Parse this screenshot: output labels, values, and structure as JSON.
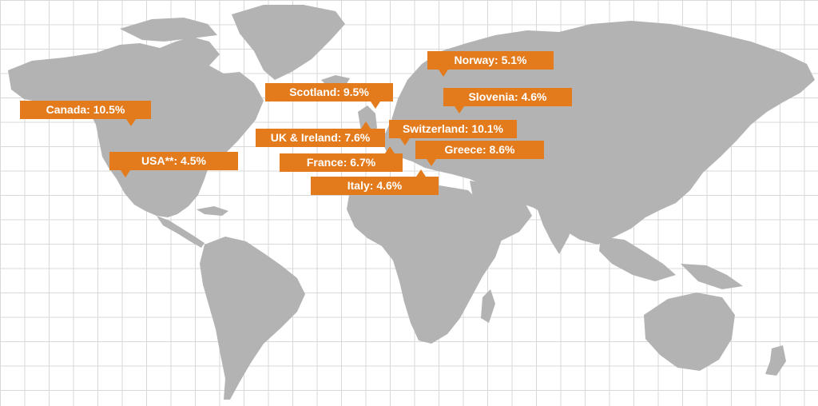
{
  "colors": {
    "accent": "#e37b1d",
    "land": "#b3b3b3",
    "grid": "#d9d9d9",
    "background": "#ffffff",
    "label_text": "#ffffff"
  },
  "callouts": [
    {
      "id": "canada",
      "label": "Canada: 10.5%"
    },
    {
      "id": "usa",
      "label": "USA**: 4.5%"
    },
    {
      "id": "scotland",
      "label": "Scotland: 9.5%"
    },
    {
      "id": "uk-ireland",
      "label": "UK & Ireland: 7.6%"
    },
    {
      "id": "france",
      "label": "France: 6.7%"
    },
    {
      "id": "italy",
      "label": "Italy: 4.6%"
    },
    {
      "id": "norway",
      "label": "Norway: 5.1%"
    },
    {
      "id": "slovenia",
      "label": "Slovenia: 4.6%"
    },
    {
      "id": "switzerland",
      "label": "Switzerland: 10.1%"
    },
    {
      "id": "greece",
      "label": "Greece: 8.6%"
    }
  ]
}
